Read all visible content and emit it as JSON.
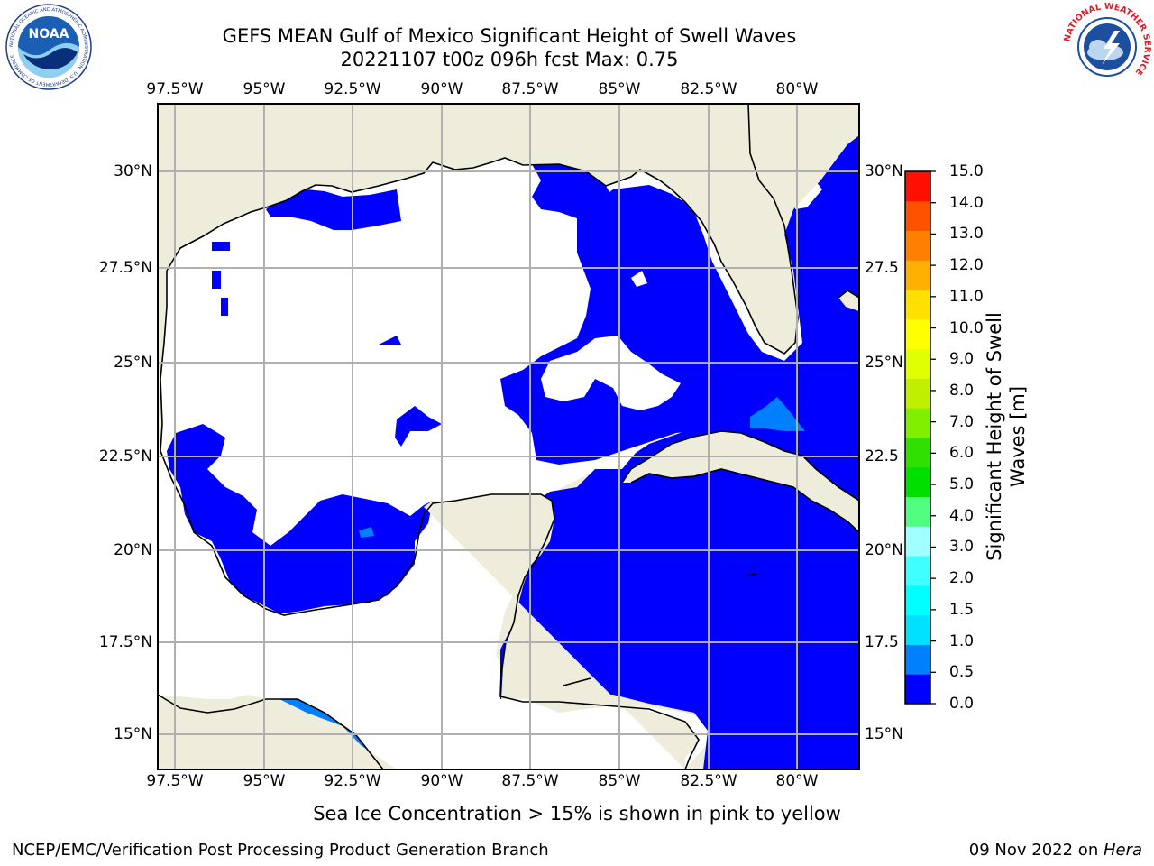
{
  "header": {
    "title_line1": "GEFS MEAN Gulf of Mexico Significant Height of Swell Waves",
    "title_line2": "20221107 t00z 096h fcst   Max: 0.75"
  },
  "logos": {
    "noaa": {
      "center_text": "NOAA",
      "ring_text": "NATIONAL OCEANIC AND ATMOSPHERIC ADMINISTRATION · U.S. DEPARTMENT OF COMMERCE"
    },
    "nws": {
      "ring_text": "NATIONAL WEATHER SERVICE"
    }
  },
  "map": {
    "lon_labels": [
      "97.5°W",
      "95°W",
      "92.5°W",
      "90°W",
      "87.5°W",
      "85°W",
      "82.5°W",
      "80°W"
    ],
    "lat_labels_left": [
      "30°N",
      "27.5°N",
      "25°N",
      "22.5°N",
      "20°N",
      "17.5°N",
      "15°N"
    ],
    "lat_labels_right": [
      "30°N",
      "27.5",
      "25°N",
      "22.5",
      "20°N",
      "17.5",
      "15°N"
    ],
    "colors": {
      "land": "#eeeddc",
      "ocean_low": "#0000ff",
      "ocean_mid": "#0080ff",
      "grid": "#b0b0b0"
    }
  },
  "colorbar": {
    "label": "Significant Height of Swell Waves [m]",
    "ticks": [
      "15.0",
      "14.0",
      "13.0",
      "12.0",
      "11.0",
      "10.0",
      "9.0",
      "8.0",
      "7.0",
      "6.0",
      "5.0",
      "4.0",
      "3.0",
      "2.0",
      "1.5",
      "1.0",
      "0.5",
      "0.0"
    ],
    "colors": [
      "#0000ff",
      "#0080ff",
      "#00e0ff",
      "#00ffff",
      "#40ffff",
      "#a0ffff",
      "#50ff80",
      "#00e000",
      "#30e000",
      "#80f000",
      "#c0f000",
      "#e0ff00",
      "#ffff00",
      "#ffe000",
      "#ffb000",
      "#ff8000",
      "#ff5000",
      "#ff1000"
    ]
  },
  "footer": {
    "note": "Sea Ice Concentration > 15% is shown in pink to yellow",
    "credit_left": "NCEP/EMC/Verification Post Processing Product Generation Branch",
    "credit_right_date": "09 Nov 2022 on ",
    "credit_right_host": "Hera"
  }
}
